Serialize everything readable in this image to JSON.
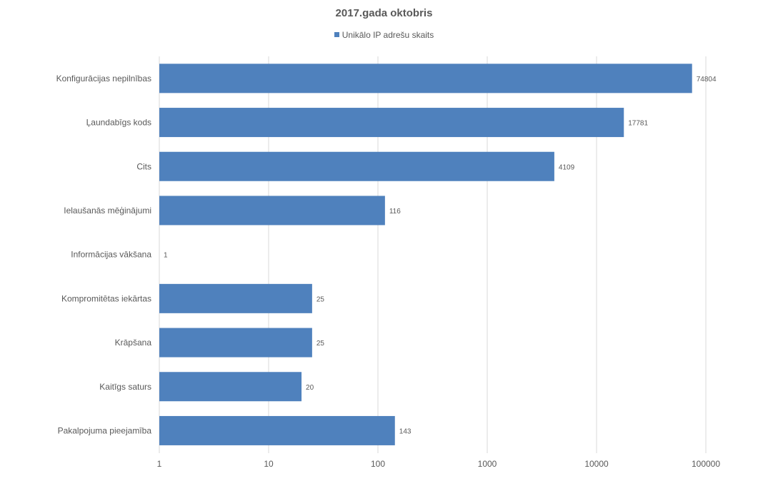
{
  "chart_data": {
    "type": "bar",
    "orientation": "horizontal",
    "title": "2017.gada oktobris",
    "series": [
      {
        "name": "Unikālo IP adrešu skaits",
        "color": "#4f81bd",
        "values": [
          74804,
          17781,
          4109,
          116,
          1,
          25,
          25,
          20,
          143
        ]
      }
    ],
    "categories": [
      "Konfigurācijas nepilnības",
      "Ļaundabīgs kods",
      "Cits",
      "Ielaušanās mēģinājumi",
      "Informācijas vākšana",
      "Kompromitētas iekārtas",
      "Krāpšana",
      "Kaitīgs saturs",
      "Pakalpojuma pieejamība"
    ],
    "x_scale": "log",
    "xlim": [
      1,
      100000
    ],
    "x_ticks": [
      "1",
      "10",
      "100",
      "1000",
      "10000",
      "100000"
    ],
    "grid": true,
    "legend_position": "top",
    "data_labels": [
      "74804",
      "17781",
      "4109",
      "116",
      "1",
      "25",
      "25",
      "20",
      "143"
    ]
  }
}
